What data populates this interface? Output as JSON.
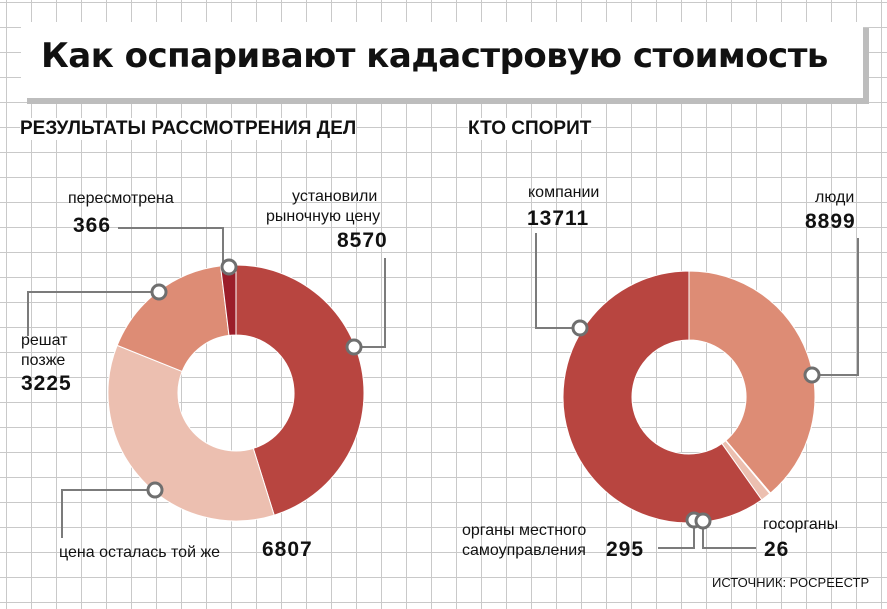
{
  "title": "Как оспаривают кадастровую стоимость",
  "source": "ИСТОЧНИК: РОСРЕЕСТР",
  "colors": {
    "dark_red": "#b84540",
    "crimson": "#9b1e2a",
    "salmon": "#dd8c75",
    "pale": "#ecbfb0"
  },
  "chart_data": [
    {
      "type": "pie",
      "donut": true,
      "title": "РЕЗУЛЬТАТЫ РАССМОТРЕНИЯ ДЕЛ",
      "slices": [
        {
          "label": "установили рыночную цену",
          "value": 8570,
          "display": "8570",
          "color": "#b84540"
        },
        {
          "label": "цена осталась той же",
          "value": 6807,
          "display": "6807",
          "color": "#ecbfb0"
        },
        {
          "label": "решат позже",
          "value": 3225,
          "display": "3225",
          "color": "#dd8c75"
        },
        {
          "label": "пересмотрена",
          "value": 366,
          "display": "366",
          "color": "#9b1e2a"
        }
      ],
      "labels": {
        "rynochnuyu": [
          "установили",
          "рыночную цену"
        ],
        "ostalas": "цена осталась той же",
        "reshat": [
          "решат",
          "позже"
        ],
        "peresmotrena": "пересмотрена"
      }
    },
    {
      "type": "pie",
      "donut": true,
      "title": "КТО СПОРИТ",
      "slices": [
        {
          "label": "компании",
          "value": 13711,
          "display": "13711",
          "color": "#b84540"
        },
        {
          "label": "люди",
          "value": 8899,
          "display": "8899",
          "color": "#dd8c75"
        },
        {
          "label": "госорганы",
          "value": 26,
          "display": "26",
          "color": "#dd8c75"
        },
        {
          "label": "органы местного самоуправления",
          "value": 295,
          "display": "295",
          "color": "#ecbfb0"
        }
      ],
      "labels": {
        "kompanii": "компании",
        "lyudi": "люди",
        "gosorgany": "госорганы",
        "mestnye": [
          "органы местного",
          "самоуправления"
        ]
      }
    }
  ]
}
